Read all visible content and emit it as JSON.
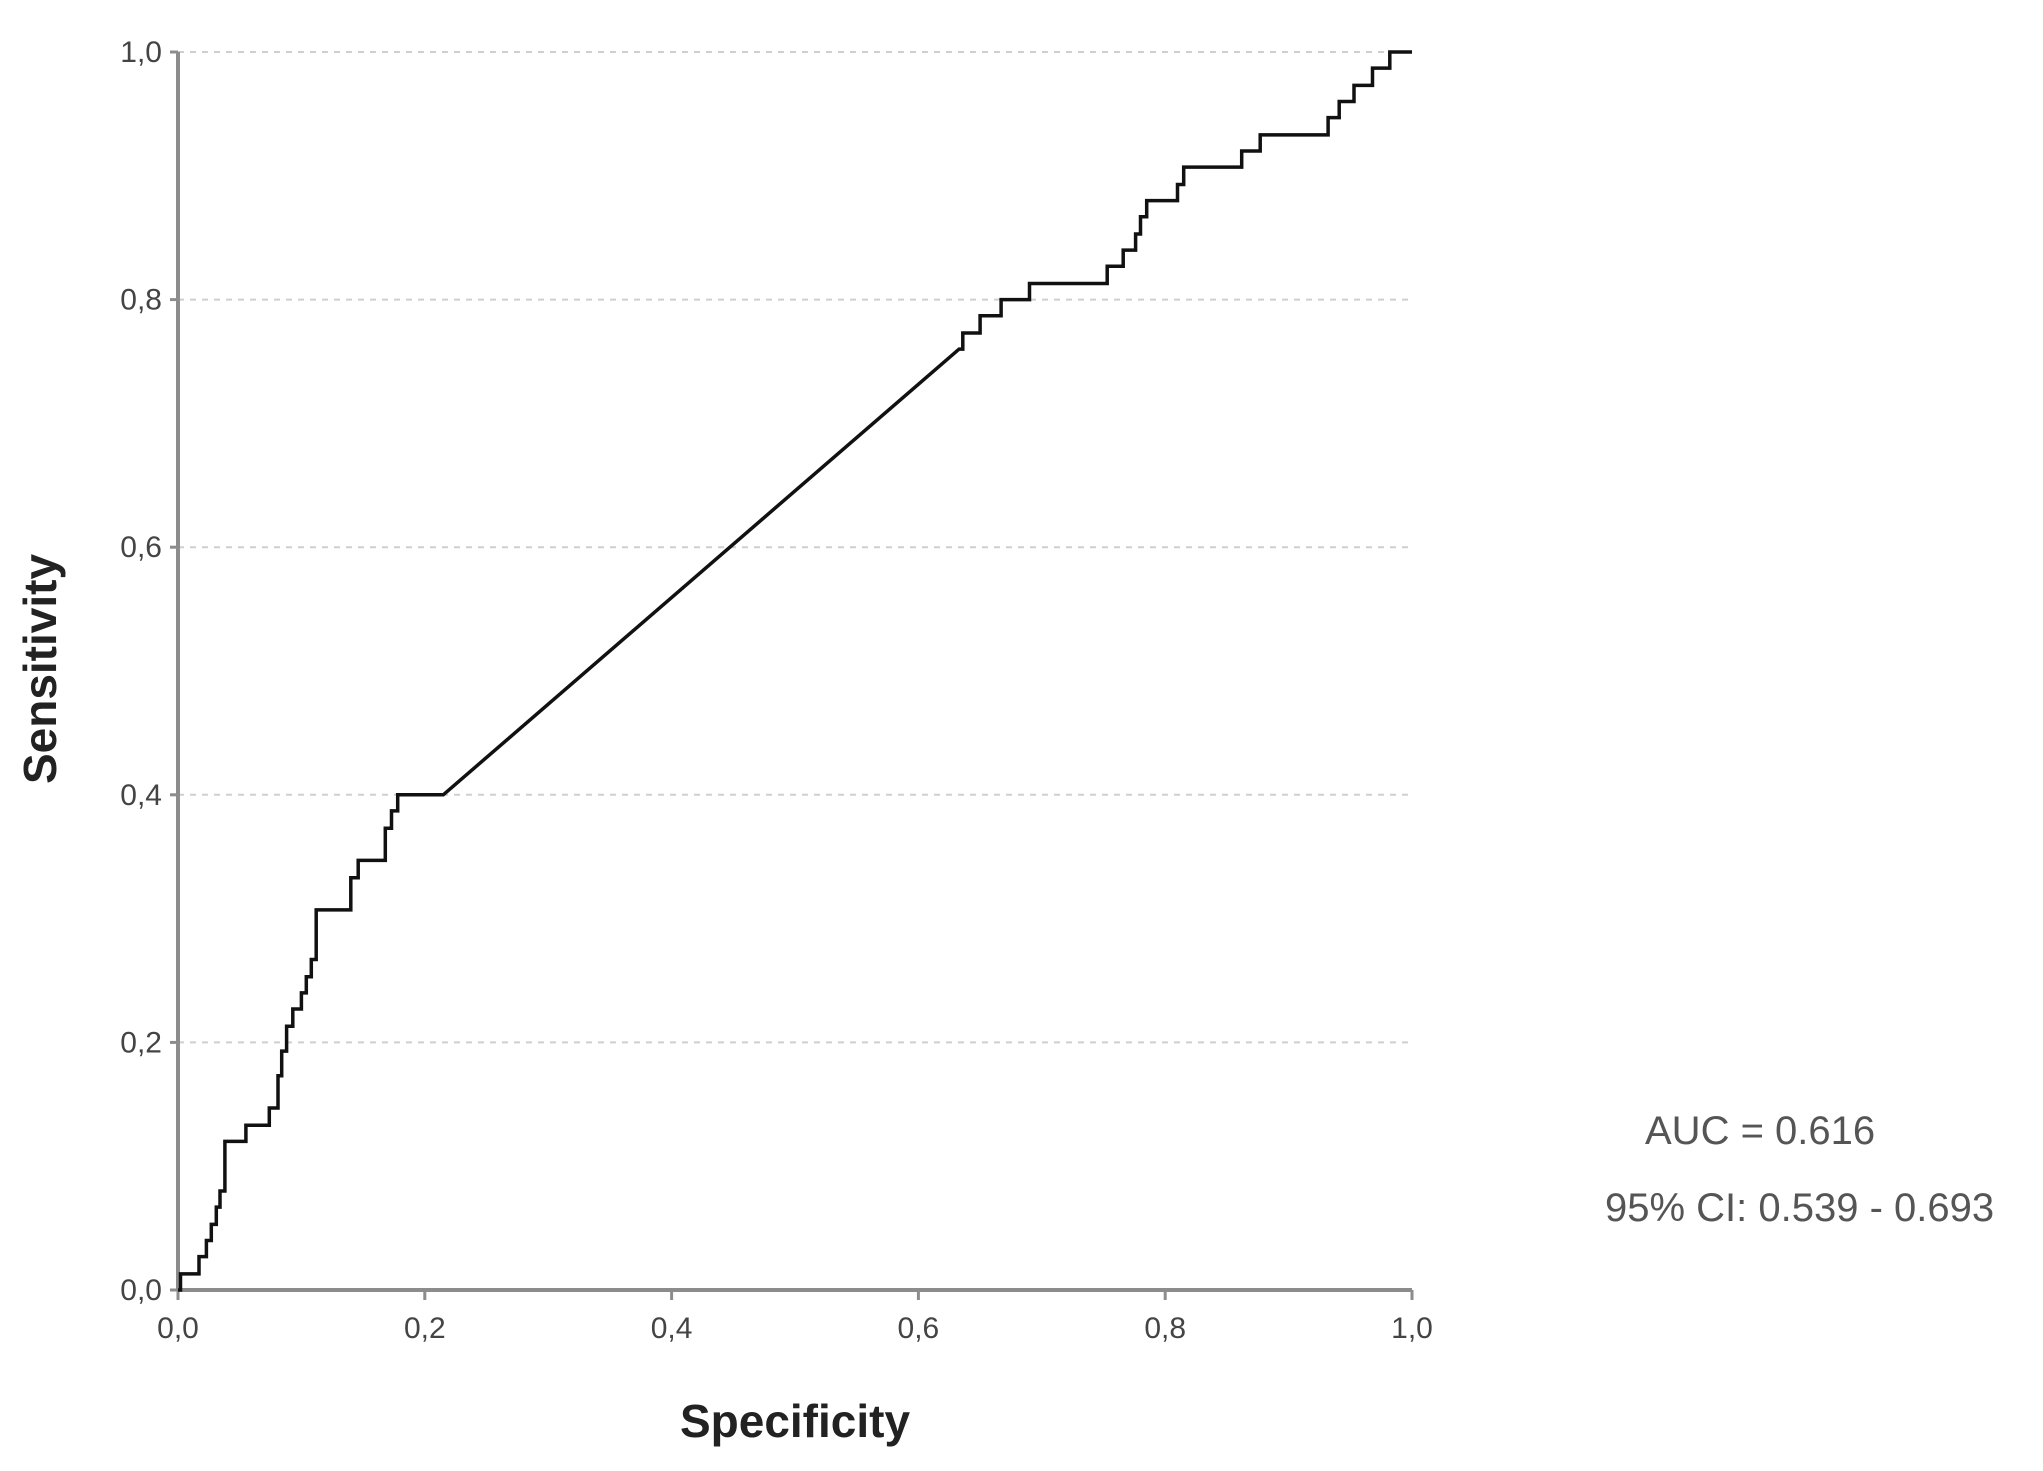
{
  "chart_data": {
    "type": "line",
    "xlabel": "Specificity",
    "ylabel": "Sensitivity",
    "xlim": [
      0,
      1
    ],
    "ylim": [
      0,
      1
    ],
    "x_ticks": [
      "0,0",
      "0,2",
      "0,4",
      "0,6",
      "0,8",
      "1,0"
    ],
    "y_ticks": [
      "0,0",
      "0,2",
      "0,4",
      "0,6",
      "0,8",
      "1,0"
    ],
    "grid": true,
    "annotations": [
      "AUC = 0.616",
      "95% CI: 0.539 - 0.693"
    ],
    "series": [
      {
        "color": "#111111",
        "points": [
          [
            0.0,
            0.0
          ],
          [
            0.002,
            0.0
          ],
          [
            0.002,
            0.013
          ],
          [
            0.017,
            0.013
          ],
          [
            0.017,
            0.027
          ],
          [
            0.023,
            0.027
          ],
          [
            0.023,
            0.04
          ],
          [
            0.027,
            0.04
          ],
          [
            0.027,
            0.053
          ],
          [
            0.031,
            0.053
          ],
          [
            0.031,
            0.067
          ],
          [
            0.034,
            0.067
          ],
          [
            0.034,
            0.08
          ],
          [
            0.038,
            0.08
          ],
          [
            0.038,
            0.12
          ],
          [
            0.055,
            0.12
          ],
          [
            0.055,
            0.133
          ],
          [
            0.074,
            0.133
          ],
          [
            0.074,
            0.147
          ],
          [
            0.081,
            0.147
          ],
          [
            0.081,
            0.173
          ],
          [
            0.084,
            0.173
          ],
          [
            0.084,
            0.193
          ],
          [
            0.088,
            0.193
          ],
          [
            0.088,
            0.213
          ],
          [
            0.093,
            0.213
          ],
          [
            0.093,
            0.227
          ],
          [
            0.1,
            0.227
          ],
          [
            0.1,
            0.24
          ],
          [
            0.104,
            0.24
          ],
          [
            0.104,
            0.253
          ],
          [
            0.108,
            0.253
          ],
          [
            0.108,
            0.267
          ],
          [
            0.112,
            0.267
          ],
          [
            0.112,
            0.307
          ],
          [
            0.14,
            0.307
          ],
          [
            0.14,
            0.333
          ],
          [
            0.146,
            0.333
          ],
          [
            0.146,
            0.347
          ],
          [
            0.168,
            0.347
          ],
          [
            0.168,
            0.373
          ],
          [
            0.173,
            0.373
          ],
          [
            0.173,
            0.387
          ],
          [
            0.178,
            0.387
          ],
          [
            0.178,
            0.4
          ],
          [
            0.215,
            0.4
          ],
          [
            0.633,
            0.76
          ],
          [
            0.636,
            0.76
          ],
          [
            0.636,
            0.773
          ],
          [
            0.65,
            0.773
          ],
          [
            0.65,
            0.787
          ],
          [
            0.667,
            0.787
          ],
          [
            0.667,
            0.8
          ],
          [
            0.69,
            0.8
          ],
          [
            0.69,
            0.813
          ],
          [
            0.753,
            0.813
          ],
          [
            0.753,
            0.827
          ],
          [
            0.766,
            0.827
          ],
          [
            0.766,
            0.84
          ],
          [
            0.776,
            0.84
          ],
          [
            0.776,
            0.853
          ],
          [
            0.78,
            0.853
          ],
          [
            0.78,
            0.867
          ],
          [
            0.785,
            0.867
          ],
          [
            0.785,
            0.88
          ],
          [
            0.81,
            0.88
          ],
          [
            0.81,
            0.893
          ],
          [
            0.815,
            0.893
          ],
          [
            0.815,
            0.907
          ],
          [
            0.862,
            0.907
          ],
          [
            0.862,
            0.92
          ],
          [
            0.877,
            0.92
          ],
          [
            0.877,
            0.933
          ],
          [
            0.932,
            0.933
          ],
          [
            0.932,
            0.947
          ],
          [
            0.941,
            0.947
          ],
          [
            0.941,
            0.96
          ],
          [
            0.953,
            0.96
          ],
          [
            0.953,
            0.973
          ],
          [
            0.968,
            0.973
          ],
          [
            0.968,
            0.987
          ],
          [
            0.982,
            0.987
          ],
          [
            0.982,
            1.0
          ],
          [
            1.0,
            1.0
          ]
        ]
      }
    ]
  }
}
